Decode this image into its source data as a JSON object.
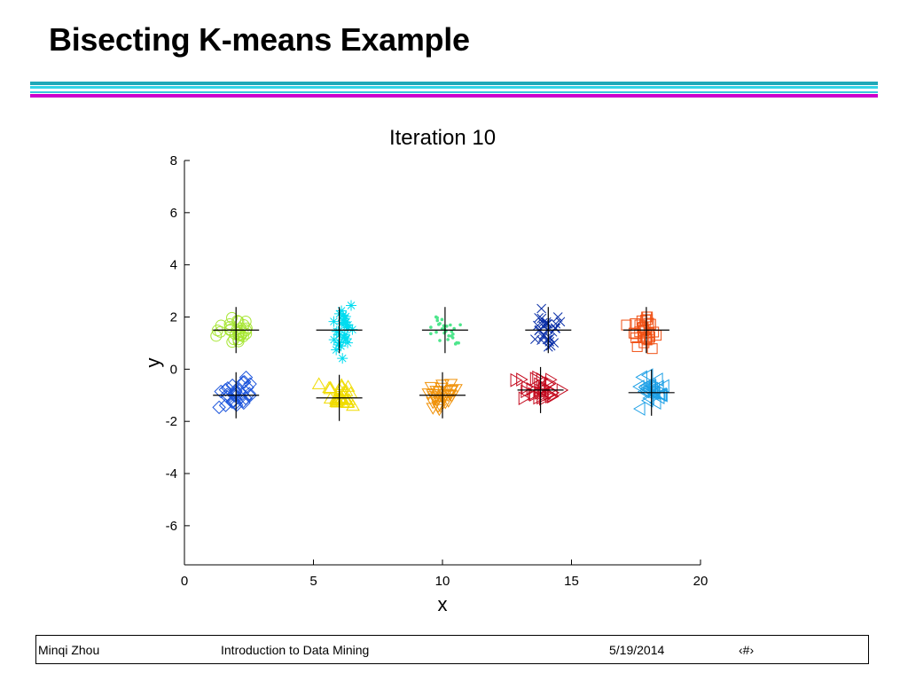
{
  "slide": {
    "title": "Bisecting K-means Example",
    "colors": {
      "rule_teal": "#1fa8b8",
      "rule_cyan": "#35d5e8",
      "rule_magenta": "#cc00cc"
    }
  },
  "chart_data": {
    "type": "scatter",
    "title": "Iteration 10",
    "xlabel": "x",
    "ylabel": "y",
    "xlim": [
      0,
      20
    ],
    "ylim": [
      -7.5,
      8
    ],
    "xticks": [
      0,
      5,
      10,
      15,
      20
    ],
    "yticks": [
      8,
      6,
      4,
      2,
      0,
      -2,
      -4,
      -6
    ],
    "grid": false,
    "legend": "none",
    "centroid_marker": "black plus",
    "series": [
      {
        "marker": "circle",
        "color": "#a6e632",
        "centroid": [
          2.0,
          1.5
        ],
        "x_spread": 0.55,
        "y_spread": 0.55,
        "count": 30
      },
      {
        "marker": "asterisk",
        "color": "#00dcf0",
        "centroid": [
          6.0,
          1.5
        ],
        "x_spread": 0.5,
        "y_spread": 0.8,
        "count": 30
      },
      {
        "marker": "dot",
        "color": "#4ee68c",
        "centroid": [
          10.1,
          1.5
        ],
        "x_spread": 0.6,
        "y_spread": 0.6,
        "count": 30
      },
      {
        "marker": "x",
        "color": "#0a2fa8",
        "centroid": [
          14.1,
          1.5
        ],
        "x_spread": 0.6,
        "y_spread": 0.75,
        "count": 30
      },
      {
        "marker": "square",
        "color": "#f05014",
        "centroid": [
          17.9,
          1.5
        ],
        "x_spread": 0.55,
        "y_spread": 0.7,
        "count": 30
      },
      {
        "marker": "diamond",
        "color": "#1e56dc",
        "centroid": [
          2.0,
          -1.0
        ],
        "x_spread": 0.6,
        "y_spread": 0.6,
        "count": 30
      },
      {
        "marker": "triangle-up",
        "color": "#f0dc00",
        "centroid": [
          6.0,
          -1.1
        ],
        "x_spread": 0.6,
        "y_spread": 0.55,
        "count": 30
      },
      {
        "marker": "triangle-down",
        "color": "#f0920a",
        "centroid": [
          10.0,
          -1.0
        ],
        "x_spread": 0.55,
        "y_spread": 0.6,
        "count": 30
      },
      {
        "marker": "triangle-right",
        "color": "#c40a1e",
        "centroid": [
          13.8,
          -0.8
        ],
        "x_spread": 0.7,
        "y_spread": 0.6,
        "count": 30
      },
      {
        "marker": "triangle-left",
        "color": "#1ea0e6",
        "centroid": [
          18.1,
          -0.9
        ],
        "x_spread": 0.5,
        "y_spread": 0.6,
        "count": 30
      }
    ]
  },
  "footer": {
    "author": "Minqi Zhou",
    "course": "Introduction to Data Mining",
    "date": "5/19/2014",
    "page": "‹#›"
  }
}
